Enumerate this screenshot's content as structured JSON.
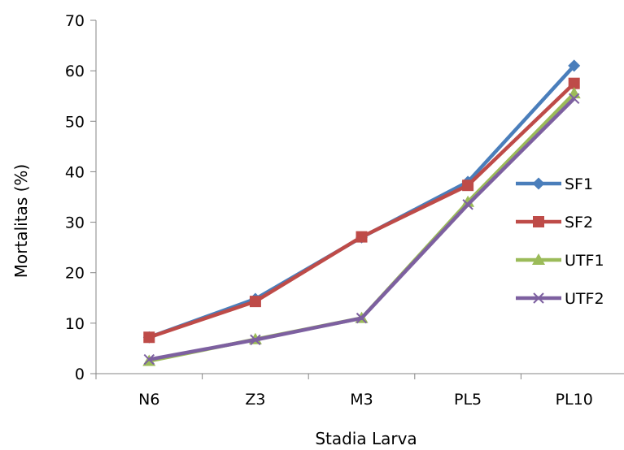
{
  "chart_data": {
    "type": "line",
    "categories": [
      "N6",
      "Z3",
      "M3",
      "PL5",
      "PL10"
    ],
    "series": [
      {
        "name": "SF1",
        "values": [
          7.2,
          14.8,
          27.0,
          38.0,
          61.0
        ],
        "color": "#4A7EBB",
        "marker": "diamond"
      },
      {
        "name": "SF2",
        "values": [
          7.2,
          14.3,
          27.1,
          37.3,
          57.5
        ],
        "color": "#BE4B48",
        "marker": "square"
      },
      {
        "name": "UTF1",
        "values": [
          2.5,
          6.8,
          11.0,
          34.0,
          55.5
        ],
        "color": "#9BBB59",
        "marker": "triangle"
      },
      {
        "name": "UTF2",
        "values": [
          2.8,
          6.7,
          11.0,
          33.5,
          54.5
        ],
        "color": "#7D60A0",
        "marker": "x"
      }
    ],
    "xlabel": "Stadia Larva",
    "ylabel": "Mortalitas (%)",
    "ylim": [
      0,
      70
    ],
    "yticks": [
      0,
      10,
      20,
      30,
      40,
      50,
      60,
      70
    ],
    "grid": false,
    "legend": "right"
  }
}
